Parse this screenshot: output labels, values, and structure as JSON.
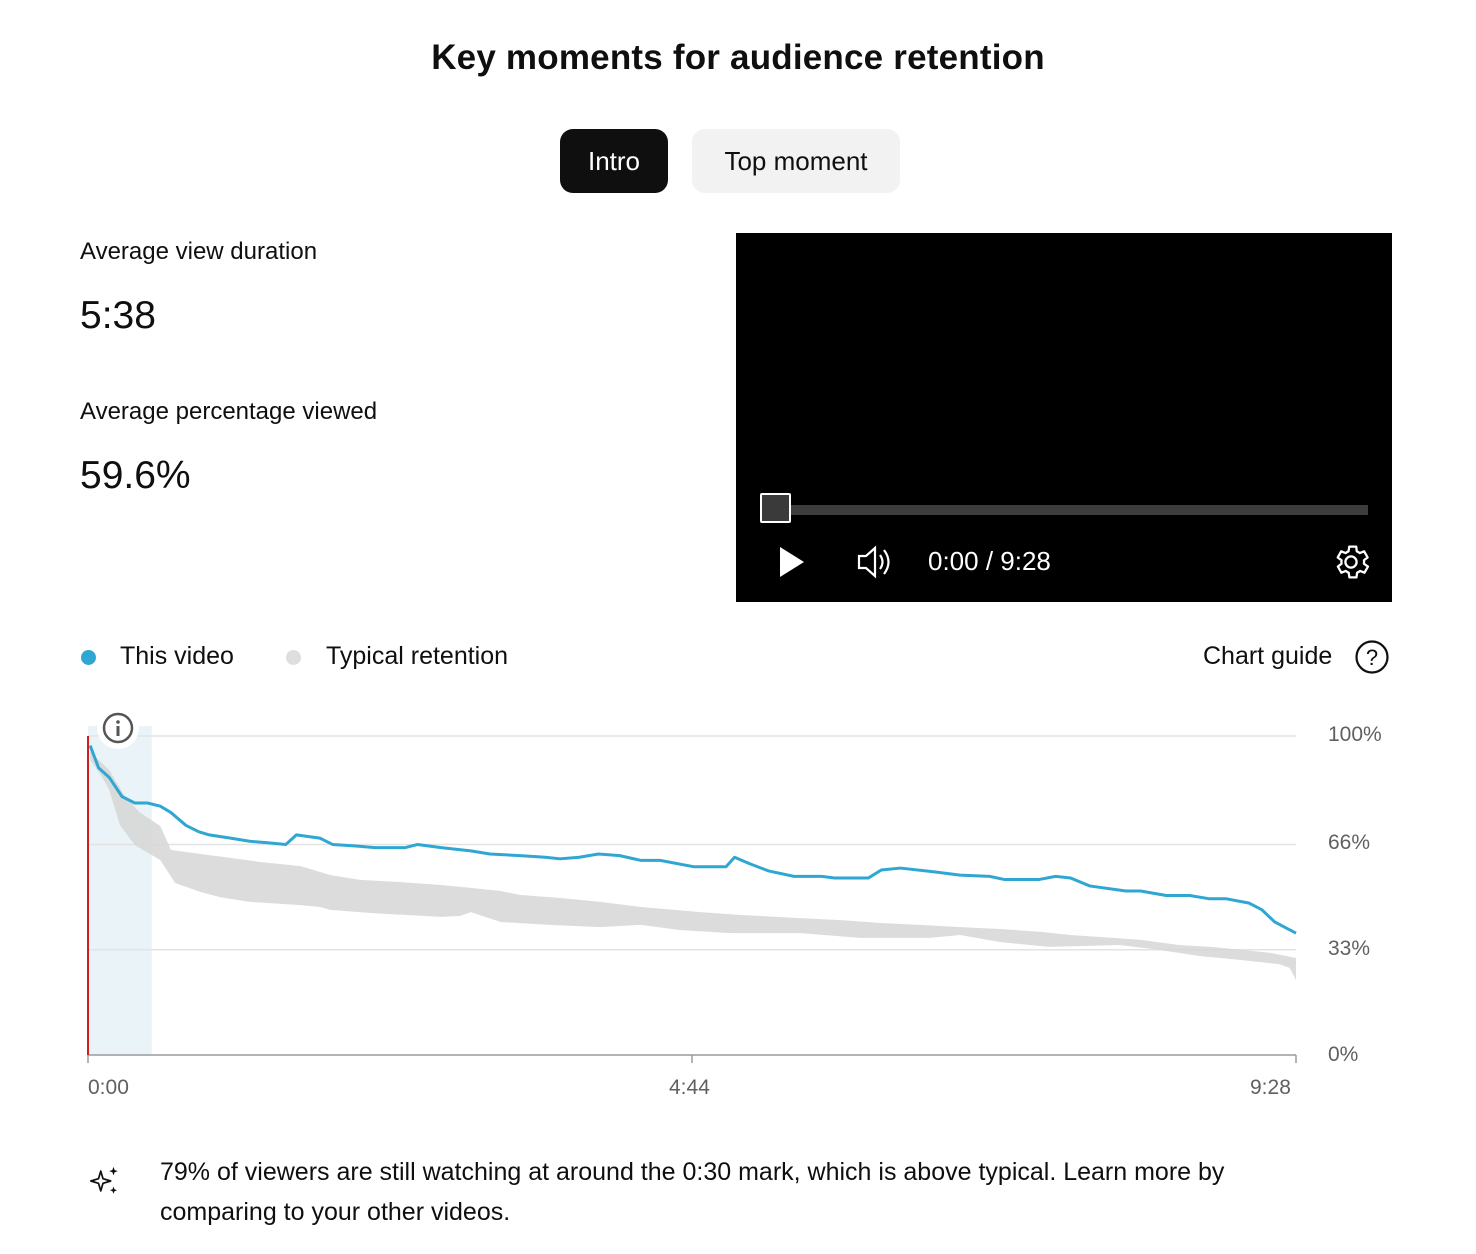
{
  "title": "Key moments for audience retention",
  "tabs": [
    {
      "label": "Intro",
      "selected": true
    },
    {
      "label": "Top moment",
      "selected": false
    }
  ],
  "stats": [
    {
      "label": "Average view duration",
      "value": "5:38"
    },
    {
      "label": "Average percentage viewed",
      "value": "59.6%"
    }
  ],
  "player": {
    "current_time": "0:00",
    "duration": "9:28",
    "time_display": "0:00 / 9:28",
    "progress": 0,
    "icons": [
      "play-icon",
      "volume-icon",
      "settings-gear-icon"
    ]
  },
  "legend": {
    "items": [
      {
        "label": "This video",
        "color": "#2fa7d2"
      },
      {
        "label": "Typical retention",
        "color": "#dedede"
      }
    ],
    "chart_guide": "Chart guide"
  },
  "insight": {
    "icon": "sparkle-icon",
    "text": "79% of viewers are still watching at around the 0:30 mark, which is above typical. Learn more by comparing to your other videos."
  },
  "chart_data": {
    "type": "line",
    "xlabel": "",
    "ylabel": "",
    "x_unit": "seconds",
    "xlim": [
      0,
      568
    ],
    "ylim": [
      0,
      100
    ],
    "x_ticks": [
      "0:00",
      "4:44",
      "9:28"
    ],
    "y_ticks": [
      "100%",
      "66%",
      "33%",
      "0%"
    ],
    "y_tick_values": [
      100,
      66,
      33,
      0
    ],
    "grid": true,
    "legend_placement": "top-left",
    "highlight_range": [
      0,
      30
    ],
    "playhead": 0,
    "series": [
      {
        "name": "This video",
        "color": "#2fa7d2",
        "x": [
          1,
          5,
          10,
          16,
          22,
          28,
          34,
          39,
          46,
          52,
          57,
          67,
          76,
          85,
          93,
          98,
          109,
          115,
          126,
          135,
          149,
          155,
          166,
          180,
          189,
          203,
          215,
          222,
          231,
          240,
          250,
          260,
          269,
          285,
          295,
          300,
          304,
          311,
          320,
          332,
          345,
          351,
          367,
          373,
          382,
          398,
          410,
          424,
          431,
          447,
          455,
          462,
          471,
          488,
          495,
          507,
          518,
          527,
          535,
          546,
          552,
          558,
          568
        ],
        "y": [
          97,
          90,
          87,
          81,
          79,
          79,
          78,
          76,
          72,
          70,
          69,
          68,
          67,
          66.5,
          66,
          69,
          68,
          66,
          65.5,
          65,
          65,
          66,
          65,
          64,
          63,
          62.5,
          62,
          61.5,
          62,
          63,
          62.5,
          61,
          61,
          59,
          59,
          59,
          62,
          60,
          57.7,
          56,
          56,
          55.5,
          55.5,
          58,
          58.6,
          57.4,
          56.4,
          56,
          55,
          55,
          56,
          55.5,
          53,
          51.4,
          51.4,
          50,
          50,
          49,
          49,
          47.6,
          45.5,
          41.7,
          38.2
        ]
      },
      {
        "name": "Typical retention",
        "color": "#dedede",
        "band_upper": {
          "x": [
            1,
            10,
            17,
            24,
            34,
            39,
            53,
            67,
            81,
            100,
            114,
            128,
            147,
            166,
            180,
            194,
            203,
            222,
            241,
            260,
            288,
            307,
            335,
            354,
            372,
            391,
            410,
            429,
            448,
            462,
            476,
            495,
            513,
            528,
            542,
            556,
            568
          ],
          "y": [
            95,
            89.3,
            81.5,
            76.2,
            71.8,
            64.3,
            63,
            61.8,
            60.5,
            59.2,
            56.4,
            54.9,
            54.2,
            53.3,
            52.4,
            51.4,
            50.2,
            49.2,
            48,
            46.4,
            44.8,
            43.9,
            42.9,
            42.3,
            41.4,
            40.8,
            40.1,
            39.5,
            38.6,
            37.6,
            37,
            36.1,
            34.5,
            33.9,
            33,
            32,
            30.4
          ]
        },
        "band_lower": {
          "x": [
            1,
            6,
            10,
            15,
            22,
            34,
            41,
            53,
            62,
            76,
            100,
            109,
            114,
            133,
            166,
            175,
            180,
            194,
            217,
            241,
            260,
            278,
            302,
            335,
            363,
            396,
            410,
            429,
            452,
            485,
            504,
            523,
            542,
            560,
            565,
            568
          ],
          "y": [
            92.5,
            87.8,
            83.1,
            72.1,
            65.8,
            61.1,
            53.9,
            51.1,
            49.5,
            48,
            47,
            46.4,
            45.5,
            44.5,
            43.3,
            43.6,
            44.8,
            41.7,
            40.8,
            40.1,
            40.8,
            39.2,
            38.2,
            38.2,
            36.7,
            36.7,
            37.6,
            35.4,
            33.9,
            34.5,
            32.9,
            31,
            29.8,
            28.5,
            27.3,
            23.5
          ]
        }
      }
    ]
  }
}
